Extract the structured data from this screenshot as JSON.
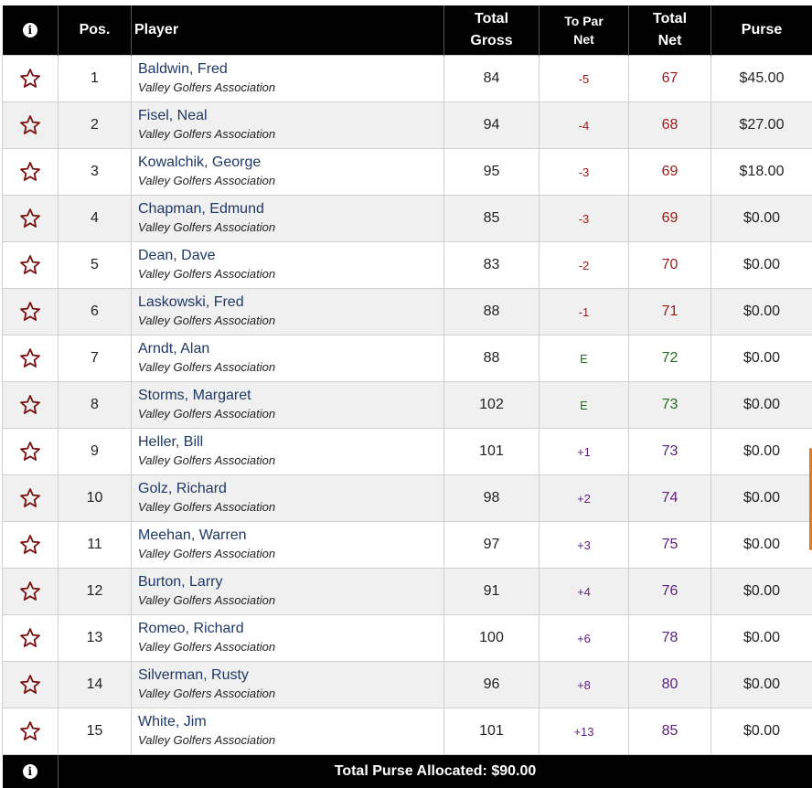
{
  "header": {
    "pos": "Pos.",
    "player": "Player",
    "total_gross_1": "Total",
    "total_gross_2": "Gross",
    "to_par_1": "To Par",
    "to_par_2": "Net",
    "total_net_1": "Total",
    "total_net_2": "Net",
    "purse": "Purse",
    "info_glyph": "i"
  },
  "colors": {
    "under_par": "#9b1a1a",
    "even_par": "#1e6b1e",
    "over_par": "#5b1f7a",
    "player_name": "#1f3864",
    "star": "#7a1010",
    "header_bg": "#000000"
  },
  "rows": [
    {
      "pos": "1",
      "name": "Baldwin, Fred",
      "club": "Valley Golfers Association",
      "gross": "84",
      "to_par": "-5",
      "net": "67",
      "purse": "$45.00",
      "status": "under"
    },
    {
      "pos": "2",
      "name": "Fisel, Neal",
      "club": "Valley Golfers Association",
      "gross": "94",
      "to_par": "-4",
      "net": "68",
      "purse": "$27.00",
      "status": "under"
    },
    {
      "pos": "3",
      "name": "Kowalchik, George",
      "club": "Valley Golfers Association",
      "gross": "95",
      "to_par": "-3",
      "net": "69",
      "purse": "$18.00",
      "status": "under"
    },
    {
      "pos": "4",
      "name": "Chapman, Edmund",
      "club": "Valley Golfers Association",
      "gross": "85",
      "to_par": "-3",
      "net": "69",
      "purse": "$0.00",
      "status": "under"
    },
    {
      "pos": "5",
      "name": "Dean, Dave",
      "club": "Valley Golfers Association",
      "gross": "83",
      "to_par": "-2",
      "net": "70",
      "purse": "$0.00",
      "status": "under"
    },
    {
      "pos": "6",
      "name": "Laskowski, Fred",
      "club": "Valley Golfers Association",
      "gross": "88",
      "to_par": "-1",
      "net": "71",
      "purse": "$0.00",
      "status": "under"
    },
    {
      "pos": "7",
      "name": "Arndt, Alan",
      "club": "Valley Golfers Association",
      "gross": "88",
      "to_par": "E",
      "net": "72",
      "purse": "$0.00",
      "status": "even"
    },
    {
      "pos": "8",
      "name": "Storms, Margaret",
      "club": "Valley Golfers Association",
      "gross": "102",
      "to_par": "E",
      "net": "73",
      "purse": "$0.00",
      "status": "even"
    },
    {
      "pos": "9",
      "name": "Heller, Bill",
      "club": "Valley Golfers Association",
      "gross": "101",
      "to_par": "+1",
      "net": "73",
      "purse": "$0.00",
      "status": "over"
    },
    {
      "pos": "10",
      "name": "Golz, Richard",
      "club": "Valley Golfers Association",
      "gross": "98",
      "to_par": "+2",
      "net": "74",
      "purse": "$0.00",
      "status": "over"
    },
    {
      "pos": "11",
      "name": "Meehan, Warren",
      "club": "Valley Golfers Association",
      "gross": "97",
      "to_par": "+3",
      "net": "75",
      "purse": "$0.00",
      "status": "over"
    },
    {
      "pos": "12",
      "name": "Burton, Larry",
      "club": "Valley Golfers Association",
      "gross": "91",
      "to_par": "+4",
      "net": "76",
      "purse": "$0.00",
      "status": "over"
    },
    {
      "pos": "13",
      "name": "Romeo, Richard",
      "club": "Valley Golfers Association",
      "gross": "100",
      "to_par": "+6",
      "net": "78",
      "purse": "$0.00",
      "status": "over"
    },
    {
      "pos": "14",
      "name": "Silverman, Rusty",
      "club": "Valley Golfers Association",
      "gross": "96",
      "to_par": "+8",
      "net": "80",
      "purse": "$0.00",
      "status": "over"
    },
    {
      "pos": "15",
      "name": "White, Jim",
      "club": "Valley Golfers Association",
      "gross": "101",
      "to_par": "+13",
      "net": "85",
      "purse": "$0.00",
      "status": "over"
    }
  ],
  "footer": {
    "total_purse": "Total Purse Allocated: $90.00",
    "info_glyph": "i"
  }
}
